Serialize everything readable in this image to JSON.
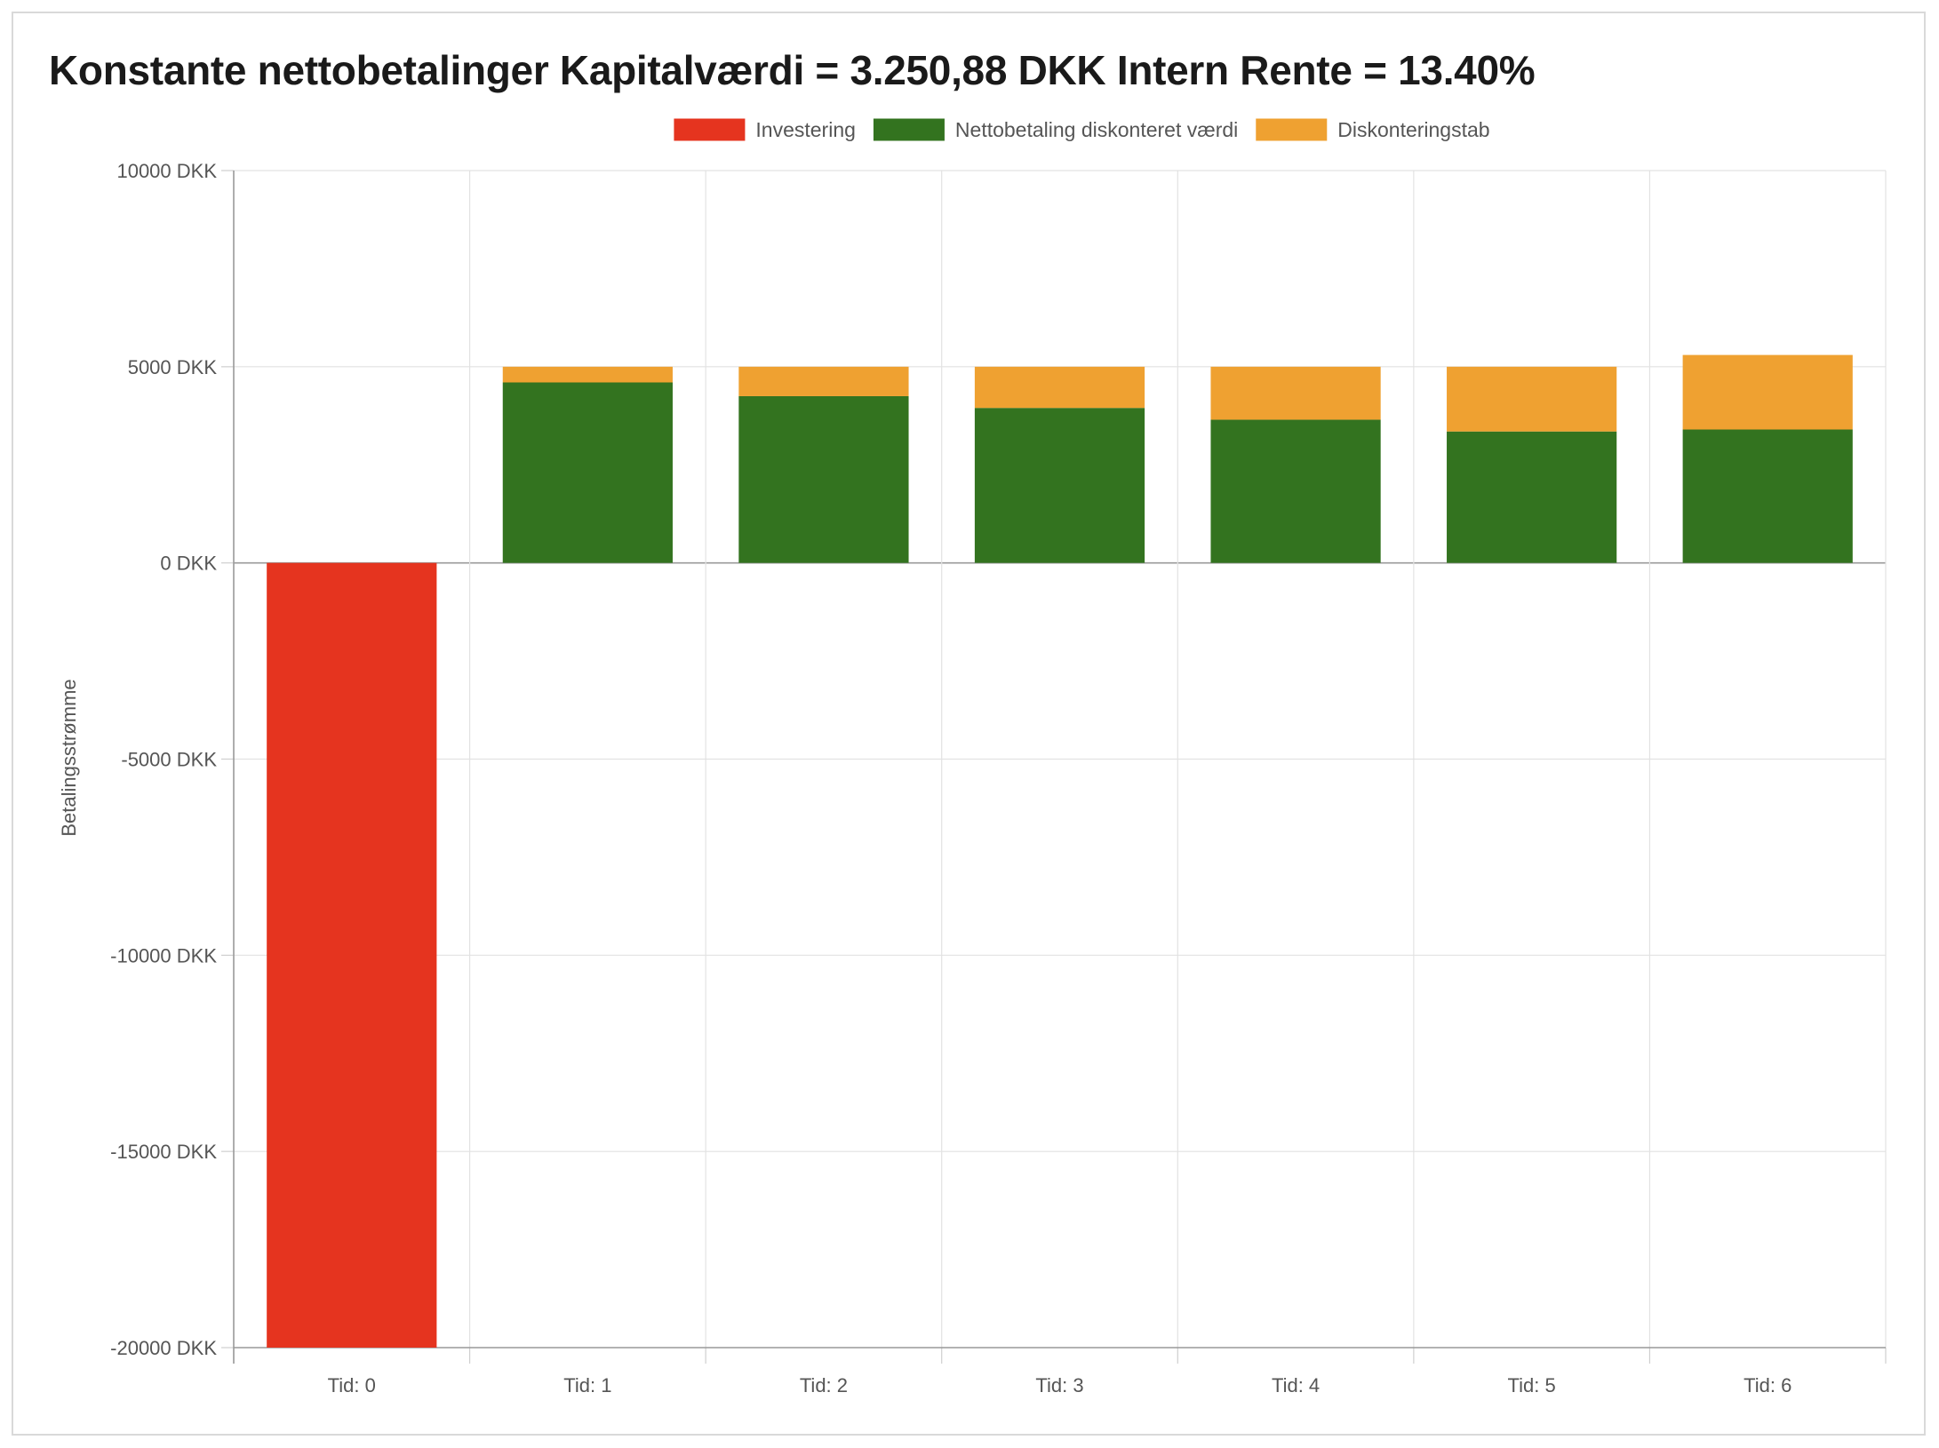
{
  "chart_data": {
    "type": "bar",
    "stacked": true,
    "title": "Konstante nettobetalinger Kapitalværdi = 3.250,88 DKK Intern Rente = 13.40%",
    "ylabel": "Betalingsstrømme",
    "xlabel": "",
    "ylim": [
      -20000,
      10000
    ],
    "y_ticks": [
      10000,
      5000,
      0,
      -5000,
      -10000,
      -15000,
      -20000
    ],
    "y_tick_suffix": " DKK",
    "grid": true,
    "legend_position": "top-center",
    "categories": [
      "Tid: 0",
      "Tid: 1",
      "Tid: 2",
      "Tid: 3",
      "Tid: 4",
      "Tid: 5",
      "Tid: 6"
    ],
    "series": [
      {
        "name": "Investering",
        "color": "#e5341f",
        "values": [
          -20000,
          0,
          0,
          0,
          0,
          0,
          0
        ]
      },
      {
        "name": "Nettobetaling diskonteret værdi",
        "color": "#33731f",
        "values": [
          0,
          4600,
          4250,
          3950,
          3650,
          3350,
          3400
        ]
      },
      {
        "name": "Diskonteringstab",
        "color": "#efa131",
        "values": [
          0,
          400,
          750,
          1050,
          1350,
          1650,
          1900
        ]
      }
    ]
  }
}
